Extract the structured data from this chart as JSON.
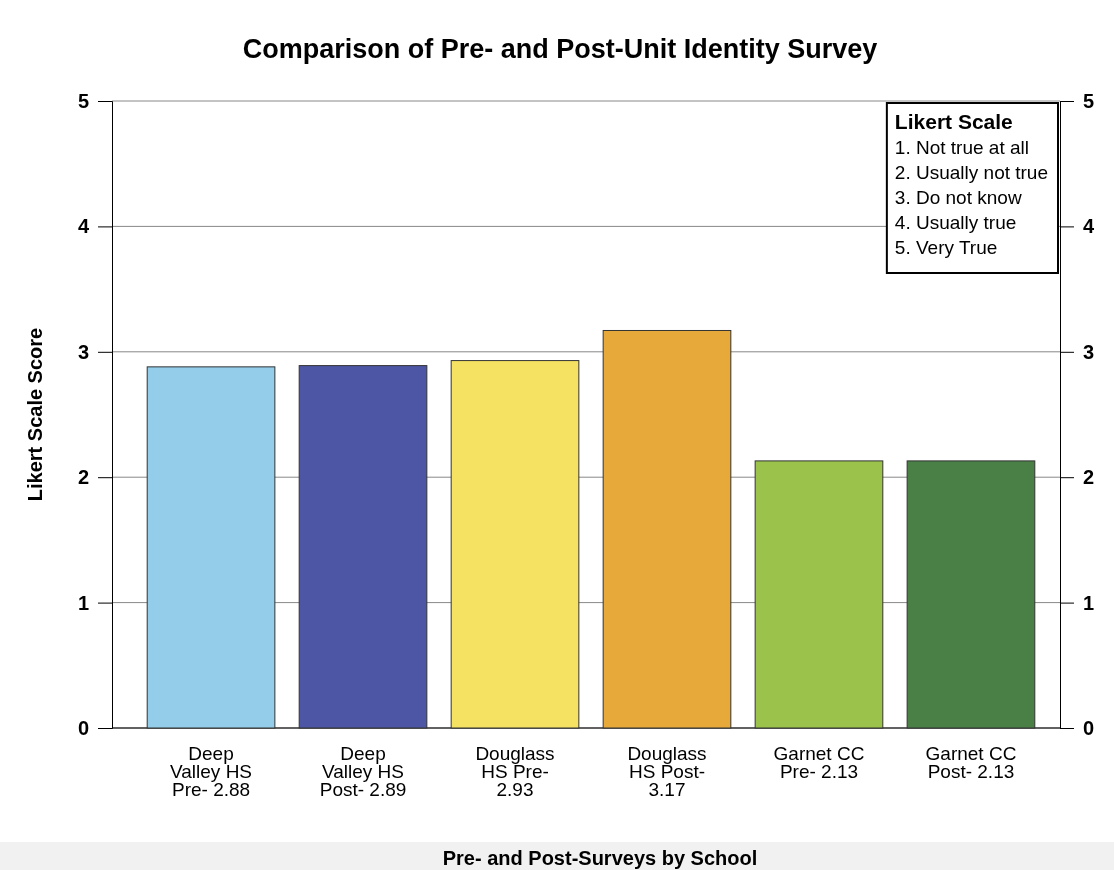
{
  "chart_data": {
    "type": "bar",
    "title": "Comparison of Pre- and Post-Unit Identity Survey",
    "xlabel": "Pre- and Post-Surveys by School",
    "ylabel": "Likert Scale Score",
    "categories": [
      "Deep Valley HS Pre- 2.88",
      "Deep Valley HS Post- 2.89",
      "Douglass HS Pre- 2.93",
      "Douglass HS Post- 3.17",
      "Garnet CC Pre- 2.13",
      "Garnet CC Post- 2.13"
    ],
    "values": [
      2.88,
      2.89,
      2.93,
      3.17,
      2.13,
      2.13
    ],
    "colors": [
      "#93cdea",
      "#4d56a5",
      "#f5e263",
      "#e6a93a",
      "#9bc34b",
      "#4a8046"
    ],
    "ylim": [
      0,
      5
    ],
    "yticks": [
      0,
      1,
      2,
      3,
      4,
      5
    ],
    "y2lim": [
      0,
      5
    ],
    "y2ticks": [
      0,
      1,
      2,
      3,
      4,
      5
    ],
    "grid": "y",
    "annotations": [
      "Likert Scale",
      "1. Not true at all",
      "2. Usually not true",
      "3. Do not know",
      "4. Usually true",
      "5. Very True"
    ]
  }
}
